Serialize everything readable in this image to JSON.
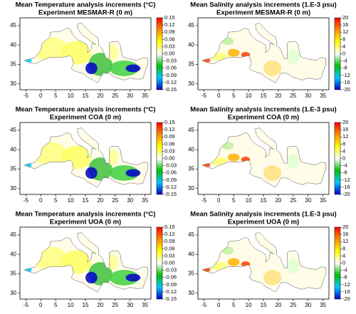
{
  "chart_data": [
    {
      "type": "map",
      "title": "Mean Temperature analysis increments (°C)",
      "subtitle": "Experiment MESMAR-R (0 m)",
      "xlim": [
        -7,
        37
      ],
      "xticks": [
        -5,
        0,
        5,
        10,
        15,
        20,
        25,
        30,
        35
      ],
      "ylim": [
        28.5,
        47
      ],
      "yticks": [
        30,
        35,
        40,
        45
      ],
      "colorbar": {
        "lim": [
          -0.15,
          0.15
        ],
        "ticks": [
          0.15,
          0.12,
          0.09,
          0.06,
          0.03,
          {
            "value": 0,
            "label": "0.00"
          },
          -0.03,
          -0.06,
          -0.09,
          -0.12,
          -0.15
        ],
        "colors": [
          "#0000c8",
          "#00c8ff",
          "#00c000",
          "#ffffff",
          "#ffff00",
          "#ff8c00",
          "#ff0000"
        ]
      }
    },
    {
      "type": "map",
      "title": "Mean Salinity analysis increments (1.E-3 psu)",
      "subtitle": "Experiment MESMAR-R (0 m)",
      "xlim": [
        -7,
        37
      ],
      "xticks": [
        -5,
        0,
        5,
        10,
        15,
        20,
        25,
        30,
        35
      ],
      "ylim": [
        28.5,
        47
      ],
      "yticks": [
        30,
        35,
        40,
        45
      ],
      "colorbar": {
        "lim": [
          -20,
          20
        ],
        "ticks": [
          20,
          16,
          12,
          8,
          4,
          0,
          -4,
          -8,
          -12,
          -16,
          -20
        ],
        "colors": [
          "#0000c8",
          "#00c8ff",
          "#00c000",
          "#ffffff",
          "#ffff00",
          "#ff8c00",
          "#ff0000"
        ]
      }
    },
    {
      "type": "map",
      "title": "Mean Temperature analysis increments (°C)",
      "subtitle": "Experiment COA (0 m)",
      "xlim": [
        -7,
        37
      ],
      "xticks": [
        -5,
        0,
        5,
        10,
        15,
        20,
        25,
        30,
        35
      ],
      "ylim": [
        28.5,
        47
      ],
      "yticks": [
        30,
        35,
        40,
        45
      ],
      "colorbar": {
        "lim": [
          -0.15,
          0.15
        ],
        "ticks": [
          0.15,
          0.12,
          0.09,
          0.06,
          0.03,
          {
            "value": 0,
            "label": "0.00"
          },
          -0.03,
          -0.06,
          -0.09,
          -0.12,
          -0.15
        ],
        "colors": [
          "#0000c8",
          "#00c8ff",
          "#00c000",
          "#ffffff",
          "#ffff00",
          "#ff8c00",
          "#ff0000"
        ]
      }
    },
    {
      "type": "map",
      "title": "Mean Salinity analysis increments (1.E-3 psu)",
      "subtitle": "Experiment COA (0 m)",
      "xlim": [
        -7,
        37
      ],
      "xticks": [
        -5,
        0,
        5,
        10,
        15,
        20,
        25,
        30,
        35
      ],
      "ylim": [
        28.5,
        47
      ],
      "yticks": [
        30,
        35,
        40,
        45
      ],
      "colorbar": {
        "lim": [
          -20,
          20
        ],
        "ticks": [
          20,
          16,
          12,
          8,
          4,
          0,
          -4,
          -8,
          -12,
          -16,
          -20
        ],
        "colors": [
          "#0000c8",
          "#00c8ff",
          "#00c000",
          "#ffffff",
          "#ffff00",
          "#ff8c00",
          "#ff0000"
        ]
      }
    },
    {
      "type": "map",
      "title": "Mean Temperature analysis increments (°C)",
      "subtitle": "Experiment UOA (0 m)",
      "xlim": [
        -7,
        37
      ],
      "xticks": [
        -5,
        0,
        5,
        10,
        15,
        20,
        25,
        30,
        35
      ],
      "ylim": [
        28.5,
        47
      ],
      "yticks": [
        30,
        35,
        40,
        45
      ],
      "colorbar": {
        "lim": [
          -0.15,
          0.15
        ],
        "ticks": [
          0.15,
          0.12,
          0.09,
          0.06,
          0.03,
          {
            "value": 0,
            "label": "0.00"
          },
          -0.03,
          -0.06,
          -0.09,
          -0.12,
          -0.15
        ],
        "colors": [
          "#0000c8",
          "#00c8ff",
          "#00c000",
          "#ffffff",
          "#ffff00",
          "#ff8c00",
          "#ff0000"
        ]
      }
    },
    {
      "type": "map",
      "title": "Mean Salinity analysis increments (1.E-3 psu)",
      "subtitle": "Experiment UOA (0 m)",
      "xlim": [
        -7,
        37
      ],
      "xticks": [
        -5,
        0,
        5,
        10,
        15,
        20,
        25,
        30,
        35
      ],
      "ylim": [
        28.5,
        47
      ],
      "yticks": [
        30,
        35,
        40,
        45
      ],
      "colorbar": {
        "lim": [
          -20,
          20
        ],
        "ticks": [
          20,
          16,
          12,
          8,
          4,
          0,
          -4,
          -8,
          -12,
          -16,
          -20
        ],
        "colors": [
          "#0000c8",
          "#00c8ff",
          "#00c000",
          "#ffffff",
          "#ffff00",
          "#ff8c00",
          "#ff0000"
        ]
      }
    }
  ]
}
